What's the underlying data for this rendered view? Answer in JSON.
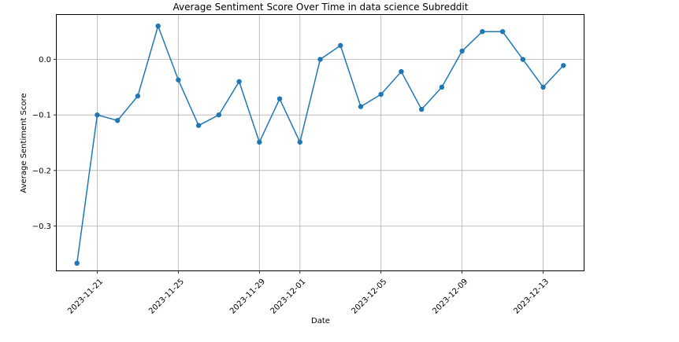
{
  "chart_data": {
    "type": "line",
    "title": "Average Sentiment Score Over Time in data science Subreddit",
    "xlabel": "Date",
    "ylabel": "Average Sentiment Score",
    "x_ticks": [
      "2023-11-21",
      "2023-11-25",
      "2023-11-29",
      "2023-12-01",
      "2023-12-05",
      "2023-12-09",
      "2023-12-13"
    ],
    "y_ticks": [
      "−0.3",
      "−0.2",
      "−0.1",
      "0.0"
    ],
    "y_tick_values": [
      -0.3,
      -0.2,
      -0.1,
      0.0
    ],
    "xlim": [
      "2023-11-19",
      "2023-12-15"
    ],
    "ylim": [
      -0.38,
      0.08
    ],
    "grid": true,
    "marker": "circle",
    "colors": {
      "line": "#1f77b4",
      "grid": "#b0b0b0",
      "axes": "#000000"
    },
    "series": [
      {
        "x": [
          "2023-11-20",
          "2023-11-21",
          "2023-11-22",
          "2023-11-23",
          "2023-11-24",
          "2023-11-25",
          "2023-11-26",
          "2023-11-27",
          "2023-11-28",
          "2023-11-29",
          "2023-11-30",
          "2023-12-01",
          "2023-12-02",
          "2023-12-03",
          "2023-12-04",
          "2023-12-05",
          "2023-12-06",
          "2023-12-07",
          "2023-12-08",
          "2023-12-09",
          "2023-12-10",
          "2023-12-11",
          "2023-12-12",
          "2023-12-13",
          "2023-12-14"
        ],
        "values": [
          -0.367,
          -0.1,
          -0.11,
          -0.066,
          0.06,
          -0.037,
          -0.119,
          -0.1,
          -0.04,
          -0.149,
          -0.071,
          -0.149,
          0.0,
          0.025,
          -0.085,
          -0.063,
          -0.022,
          -0.09,
          -0.05,
          0.015,
          0.05,
          0.05,
          0.0,
          -0.05,
          -0.011
        ]
      }
    ]
  }
}
